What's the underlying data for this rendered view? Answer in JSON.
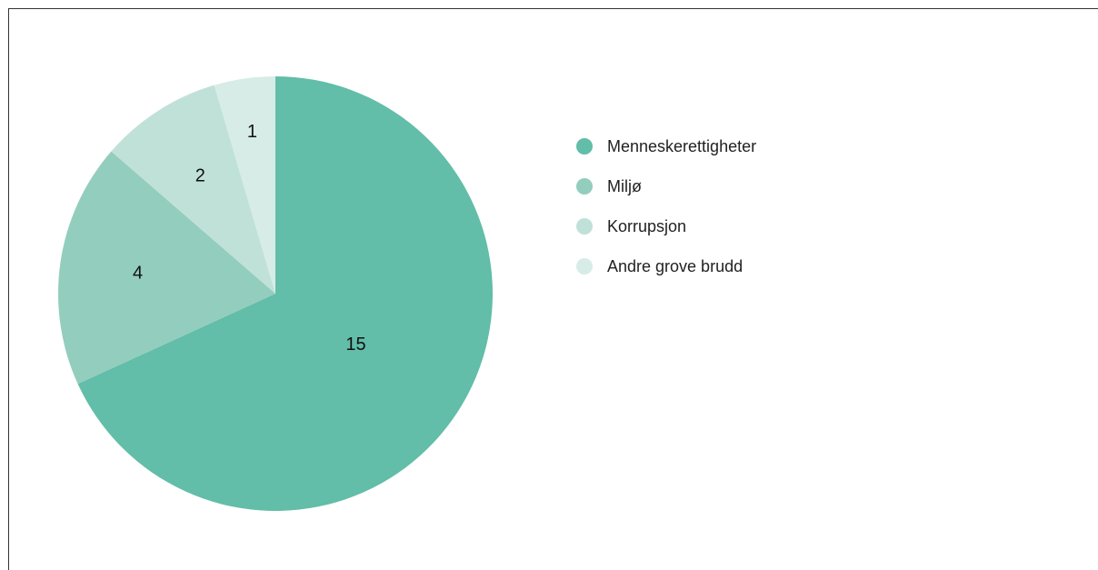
{
  "chart_data": {
    "type": "pie",
    "title": "",
    "slices": [
      {
        "label": "Menneskerettigheter",
        "value": 15,
        "color": "#62bda9"
      },
      {
        "label": "Miljø",
        "value": 4,
        "color": "#93cdbd"
      },
      {
        "label": "Korrupsjon",
        "value": 2,
        "color": "#c0e1d8"
      },
      {
        "label": "Andre grove brudd",
        "value": 1,
        "color": "#d7ece6"
      }
    ],
    "start": "12 o'clock",
    "direction": "clockwise",
    "legend_position": "right"
  }
}
